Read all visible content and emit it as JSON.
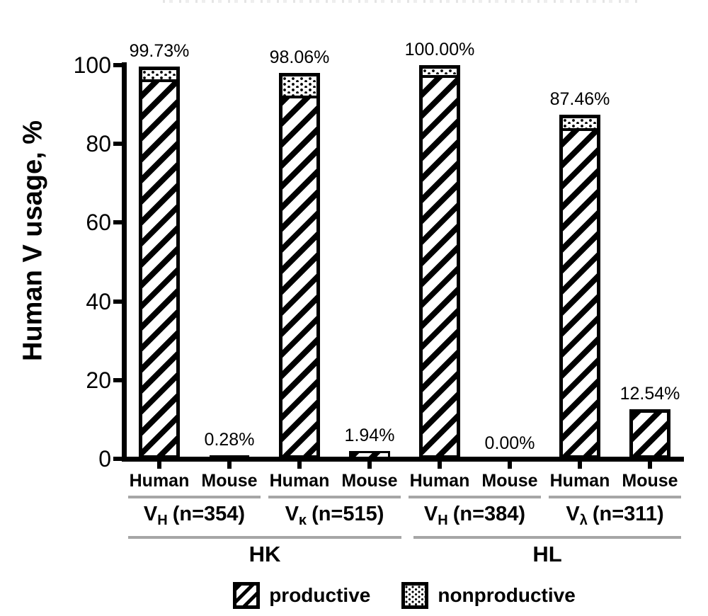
{
  "y_axis": {
    "label": "Human V usage, %",
    "tick_labels": [
      "100",
      "80",
      "60",
      "40",
      "20",
      "0"
    ],
    "tick_values": [
      100,
      80,
      60,
      40,
      20,
      0
    ]
  },
  "groups": [
    {
      "gene_prefix": "V",
      "gene_sub": "H",
      "gene_rest": "(n=354)",
      "family": "HK",
      "bars": [
        {
          "x_label": "Human",
          "label": "99.73%",
          "total": 99.73,
          "nonproductive": 3.6
        },
        {
          "x_label": "Mouse",
          "label": "0.28%",
          "total": 0.28,
          "nonproductive": 0
        }
      ]
    },
    {
      "gene_prefix": "V",
      "gene_sub": "κ",
      "gene_rest": "(n=515)",
      "family": "HK",
      "bars": [
        {
          "x_label": "Human",
          "label": "98.06%",
          "total": 98.06,
          "nonproductive": 6.1
        },
        {
          "x_label": "Mouse",
          "label": "1.94%",
          "total": 1.94,
          "nonproductive": 0
        }
      ]
    },
    {
      "gene_prefix": "V",
      "gene_sub": "H",
      "gene_rest": "(n=384)",
      "family": "HL",
      "bars": [
        {
          "x_label": "Human",
          "label": "100.00%",
          "total": 100.0,
          "nonproductive": 2.9
        },
        {
          "x_label": "Mouse",
          "label": "0.00%",
          "total": 0.0,
          "nonproductive": 0
        }
      ]
    },
    {
      "gene_prefix": "V",
      "gene_sub": "λ",
      "gene_rest": "(n=311)",
      "family": "HL",
      "bars": [
        {
          "x_label": "Human",
          "label": "87.46%",
          "total": 87.46,
          "nonproductive": 3.8
        },
        {
          "x_label": "Mouse",
          "label": "12.54%",
          "total": 12.54,
          "nonproductive": 0
        }
      ]
    }
  ],
  "families": [
    {
      "label": "HK"
    },
    {
      "label": "HL"
    }
  ],
  "legend": {
    "items": [
      {
        "label": "productive",
        "pattern": "hatch"
      },
      {
        "label": "nonproductive",
        "pattern": "dots"
      }
    ]
  },
  "chart_data": {
    "type": "bar",
    "stacked": true,
    "title": "",
    "xlabel": "",
    "ylabel": "Human V usage, %",
    "ylim": [
      0,
      100
    ],
    "yticks": [
      0,
      20,
      40,
      60,
      80,
      100
    ],
    "grid": false,
    "legend_position": "bottom",
    "categories": [
      "HK VH(n=354) Human",
      "HK VH(n=354) Mouse",
      "HK Vκ(n=515) Human",
      "HK Vκ(n=515) Mouse",
      "HL VH(n=384) Human",
      "HL VH(n=384) Mouse",
      "HL Vλ(n=311) Human",
      "HL Vλ(n=311) Mouse"
    ],
    "series": [
      {
        "name": "productive",
        "pattern": "diagonal-hatch",
        "values": [
          96.1,
          0.28,
          92.0,
          1.94,
          97.1,
          0.0,
          83.7,
          12.54
        ]
      },
      {
        "name": "nonproductive",
        "pattern": "dots",
        "values": [
          3.6,
          0.0,
          6.1,
          0.0,
          2.9,
          0.0,
          3.8,
          0.0
        ]
      }
    ],
    "totals": [
      99.73,
      0.28,
      98.06,
      1.94,
      100.0,
      0.0,
      87.46,
      12.54
    ],
    "bar_labels": [
      "99.73%",
      "0.28%",
      "98.06%",
      "1.94%",
      "100.00%",
      "0.00%",
      "87.46%",
      "12.54%"
    ],
    "group_labels": [
      "VH (n=354)",
      "Vκ (n=515)",
      "VH (n=384)",
      "Vλ (n=311)"
    ],
    "family_labels": [
      "HK",
      "HL"
    ]
  }
}
